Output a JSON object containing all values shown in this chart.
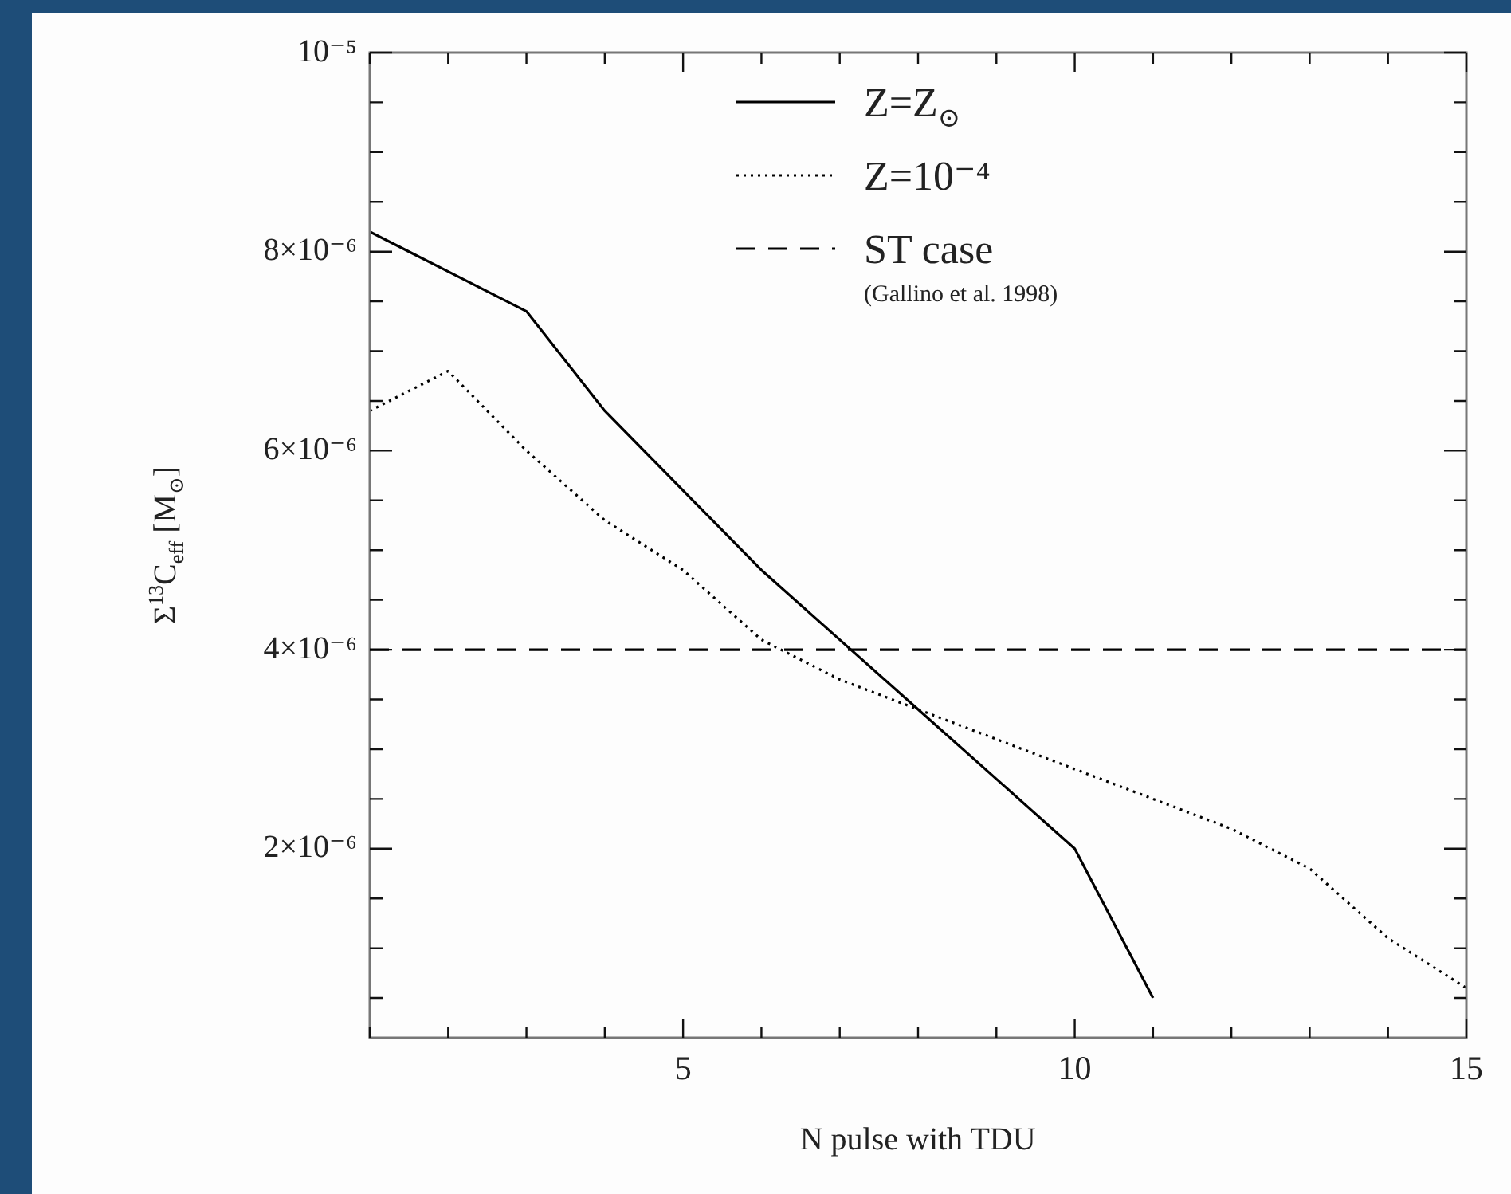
{
  "chart_data": {
    "type": "line",
    "xlabel": "N pulse with TDU",
    "ylabel": "Σ$^{13}$C$_{eff}$ [M$_{⊙}$]",
    "series": [
      {
        "name": "Z=Z$_{⊙}$",
        "color": "#000000",
        "line_style": "solid",
        "x": [
          1,
          2,
          3,
          4,
          5,
          6,
          7,
          8,
          9,
          10,
          11
        ],
        "values": [
          8.2e-06,
          7.8e-06,
          7.4e-06,
          6.4e-06,
          5.6e-06,
          4.8e-06,
          4.1e-06,
          3.4e-06,
          2.7e-06,
          2e-06,
          5e-07
        ]
      },
      {
        "name": "Z=10⁻⁴",
        "color": "#000000",
        "line_style": "dotted",
        "x": [
          1,
          2,
          3,
          4,
          5,
          6,
          7,
          8,
          9,
          10,
          11,
          12,
          13,
          14,
          15
        ],
        "values": [
          6.4e-06,
          6.8e-06,
          6e-06,
          5.3e-06,
          4.8e-06,
          4.1e-06,
          3.7e-06,
          3.4e-06,
          3.1e-06,
          2.8e-06,
          2.5e-06,
          2.2e-06,
          1.8e-06,
          1.1e-06,
          6e-07
        ]
      }
    ],
    "ref_lines": [
      {
        "axis": "y",
        "value": 4e-06,
        "label": "ST case",
        "color": "#000000",
        "line_style": "dashed"
      }
    ],
    "annotations": [
      "(Gallino et al. 1998)"
    ],
    "xlim": [
      1,
      15
    ],
    "ylim": [
      1e-07,
      1e-05
    ],
    "xticks": [
      {
        "value": 1,
        "label": null
      },
      {
        "value": 2,
        "label": null
      },
      {
        "value": 3,
        "label": null
      },
      {
        "value": 4,
        "label": null
      },
      5,
      {
        "value": 6,
        "label": null
      },
      {
        "value": 7,
        "label": null
      },
      {
        "value": 8,
        "label": null
      },
      {
        "value": 9,
        "label": null
      },
      10,
      {
        "value": 11,
        "label": null
      },
      {
        "value": 12,
        "label": null
      },
      {
        "value": 13,
        "label": null
      },
      {
        "value": 14,
        "label": null
      },
      15
    ],
    "yticks": [
      {
        "value": 5e-07,
        "label": null
      },
      {
        "value": 1e-06,
        "label": null
      },
      {
        "value": 1.5e-06,
        "label": null
      },
      {
        "value": 2e-06,
        "label": "2×10⁻⁶"
      },
      {
        "value": 2.5e-06,
        "label": null
      },
      {
        "value": 3e-06,
        "label": null
      },
      {
        "value": 3.5e-06,
        "label": null
      },
      {
        "value": 4e-06,
        "label": "4×10⁻⁶"
      },
      {
        "value": 4.5e-06,
        "label": null
      },
      {
        "value": 5e-06,
        "label": null
      },
      {
        "value": 5.5e-06,
        "label": null
      },
      {
        "value": 6e-06,
        "label": "6×10⁻⁶"
      },
      {
        "value": 6.5e-06,
        "label": null
      },
      {
        "value": 7e-06,
        "label": null
      },
      {
        "value": 7.5e-06,
        "label": null
      },
      {
        "value": 8e-06,
        "label": "8×10⁻⁶"
      },
      {
        "value": 8.5e-06,
        "label": null
      },
      {
        "value": 9e-06,
        "label": null
      },
      {
        "value": 9.5e-06,
        "label": null
      },
      {
        "value": 1e-05,
        "label": "10⁻⁵"
      }
    ],
    "grid": false,
    "legend": "top right",
    "marker": "none"
  }
}
